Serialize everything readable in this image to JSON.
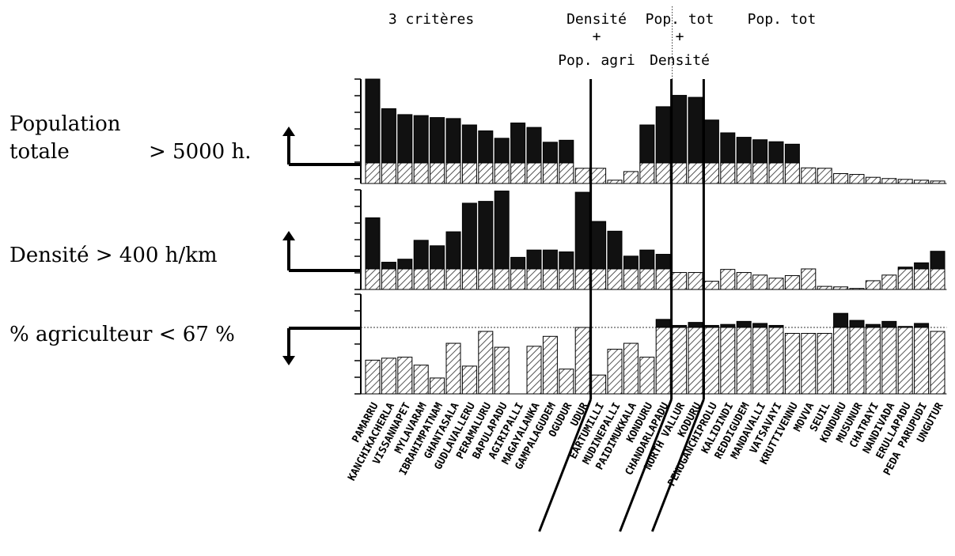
{
  "group_headers": [
    {
      "lines": [
        "3 critères"
      ]
    },
    {
      "lines": [
        "Densité",
        "+",
        "Pop. agri"
      ]
    },
    {
      "lines": [
        "Pop. tot",
        "+",
        "Densité"
      ]
    },
    {
      "lines": [
        "Pop. tot"
      ]
    }
  ],
  "row_labels": [
    {
      "lines": [
        "Population",
        "totale"
      ],
      "threshold_text": "> 5000 h."
    },
    {
      "lines": [
        "Densité  > 400 h/km"
      ],
      "threshold_text": ""
    },
    {
      "lines": [
        "% agriculteur < 67 %"
      ],
      "threshold_text": ""
    }
  ],
  "colors": {
    "above_threshold": "#111111",
    "below_threshold_hatch": "#555555",
    "axis": "#000000"
  },
  "chart_data": {
    "type": "bar",
    "stacked_threshold_bars": true,
    "categories": [
      "PAMARRU",
      "KANCHIKACHERLA",
      "VISSANNAPET",
      "MYLAVARAM",
      "IBRAHIMPATNAM",
      "GHANTASALA",
      "GUDLAVALLERU",
      "PERAMALURU",
      "BAPULAPADU",
      "AGIRIPALLI",
      "MAGAYALANKA",
      "GAMPALAGUDEM",
      "OGUDUR",
      "UDUR",
      "EARTUMILLI",
      "MUDINEPALLI",
      "PAIDIMUKKALA",
      "KONDURU",
      "CHANDARLAPADU",
      "NORTH VALLUR",
      "KODURU",
      "PENUGANCHIPROLU",
      "KALIDINDI",
      "REDDIGUDEM",
      "MANDAVALLI",
      "VATSAVAYI",
      "KRUTTIVENNU",
      "MOVVA",
      "SEUIL",
      "KONDURU",
      "MUSUNUR",
      "CHATRAYI",
      "NANDIVADA",
      "ERULLAPADU",
      "PEDA PARUPUDI",
      "UNGUTUR"
    ],
    "group_boundaries_after_index": [
      13,
      18,
      20
    ],
    "series": [
      {
        "name": "Population totale",
        "threshold": 5000,
        "values": [
          22000,
          16000,
          14800,
          14600,
          14200,
          14000,
          12700,
          11500,
          10000,
          13100,
          12200,
          9200,
          9600,
          3700,
          3700,
          800,
          2900,
          12700,
          16400,
          18700,
          18300,
          13700,
          11100,
          10200,
          9700,
          9300,
          8800,
          3800,
          3700,
          2400,
          2200,
          1500,
          1200,
          1000,
          800,
          600
        ]
      },
      {
        "name": "Densité",
        "threshold": 400,
        "values": [
          1240,
          510,
          560,
          870,
          780,
          1010,
          1480,
          1510,
          1680,
          590,
          710,
          710,
          680,
          1660,
          1180,
          1020,
          610,
          710,
          640,
          330,
          330,
          160,
          390,
          330,
          280,
          220,
          270,
          400,
          60,
          50,
          20,
          170,
          280,
          430,
          500,
          690
        ]
      },
      {
        "name": "% agriculteur",
        "threshold": 67,
        "values": [
          34,
          36,
          37,
          29,
          16,
          51,
          28,
          63,
          47,
          0,
          48,
          58,
          25,
          67,
          19,
          45,
          51,
          37,
          75,
          69,
          72,
          69,
          70,
          73,
          71,
          69,
          61,
          61,
          61,
          81,
          74,
          70,
          73,
          68,
          71,
          63
        ]
      }
    ]
  }
}
